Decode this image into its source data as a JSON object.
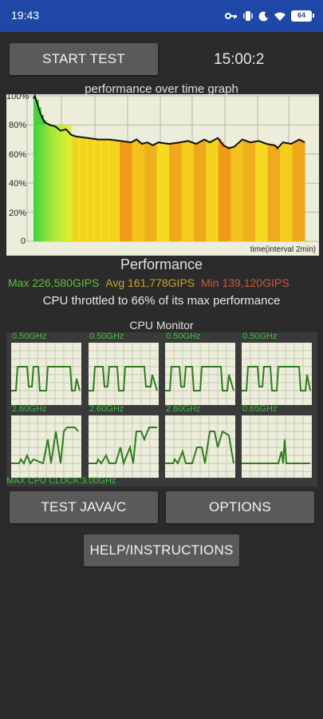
{
  "status_bar": {
    "time": "19:43",
    "battery": "64",
    "icons": [
      "key-icon",
      "vibrate-icon",
      "moon-icon",
      "wifi-icon",
      "battery-icon"
    ]
  },
  "controls": {
    "start_label": "START TEST",
    "timer": "15:00:2"
  },
  "graph": {
    "title": "performance over time graph",
    "y_ticks": [
      "100%",
      "80%",
      "60%",
      "40%",
      "20%",
      "0"
    ],
    "x_label": "time(interval 2min)"
  },
  "performance": {
    "title": "Performance",
    "max": "Max 226,580GIPS",
    "avg": "Avg 161,778GIPS",
    "min": "Min 139,120GIPS",
    "throttle": "CPU throttled to 66% of its max performance"
  },
  "cpu_monitor": {
    "title": "CPU Monitor",
    "cores": [
      {
        "freq": "0.50GHz"
      },
      {
        "freq": "0.50GHz"
      },
      {
        "freq": "0.50GHz"
      },
      {
        "freq": "0.50GHz"
      },
      {
        "freq": "2.60GHz"
      },
      {
        "freq": "2.60GHz"
      },
      {
        "freq": "2.60GHz"
      },
      {
        "freq": "0.65GHz"
      }
    ],
    "max_clock": "MAX CPU CLOCK:3.00GHz"
  },
  "buttons": {
    "java": "TEST JAVA/C",
    "options": "OPTIONS",
    "help": "HELP/INSTRUCTIONS"
  },
  "colors": {
    "status_bar": "#1f47a8",
    "max": "#5fbf3f",
    "avg": "#c8a431",
    "min": "#cc5a3c",
    "core_line": "#2e7d1e"
  }
}
